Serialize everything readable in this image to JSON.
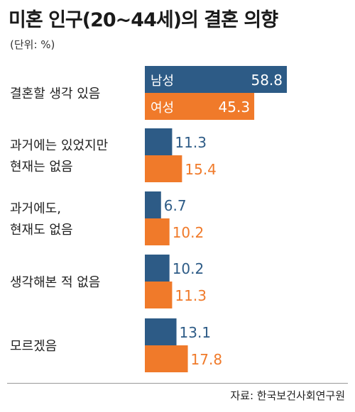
{
  "title": "미혼 인구(20~44세)의 결혼 의향",
  "unit": "(단위: %)",
  "source": "자료: 한국보건사회연구원",
  "colors": {
    "male": "#2d5b86",
    "female": "#f07a2a"
  },
  "chart_data": {
    "type": "bar",
    "orientation": "horizontal",
    "categories": [
      [
        "결혼할 생각 있음"
      ],
      [
        "과거에는 있었지만",
        "현재는 없음"
      ],
      [
        "과거에도,",
        "현재도 없음"
      ],
      [
        "생각해본 적 없음"
      ],
      [
        "모르겠음"
      ]
    ],
    "series": [
      {
        "name": "남성",
        "values": [
          58.8,
          11.3,
          6.7,
          10.2,
          13.1
        ]
      },
      {
        "name": "여성",
        "values": [
          45.3,
          15.4,
          10.2,
          11.3,
          17.8
        ]
      }
    ],
    "value_labels": [
      [
        "58.8",
        "11.3",
        "6.7",
        "10.2",
        "13.1"
      ],
      [
        "45.3",
        "15.4",
        "10.2",
        "11.3",
        "17.8"
      ]
    ],
    "legend": "inside-first-bars",
    "grid": false
  }
}
